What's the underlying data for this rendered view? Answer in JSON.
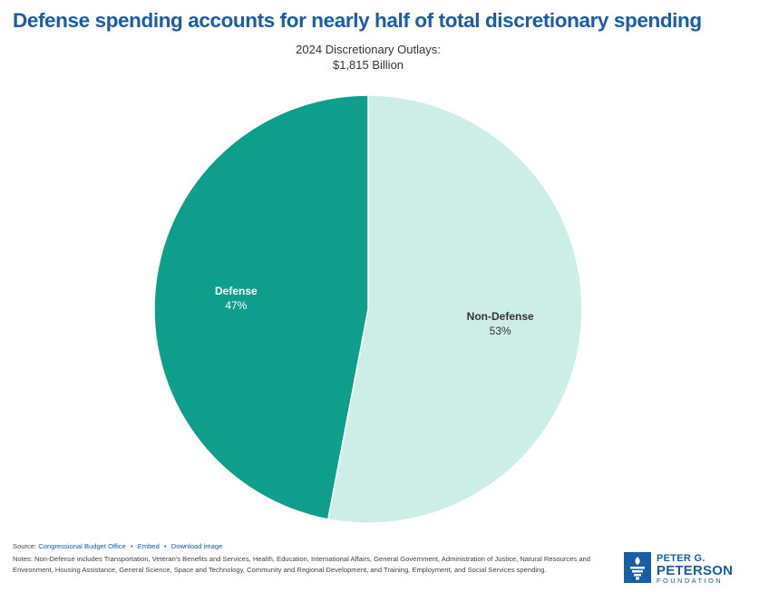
{
  "headline": "Defense spending accounts for nearly half of total discretionary spending",
  "chart_data": {
    "type": "pie",
    "title_lines": [
      "2024 Discretionary Outlays:",
      "$1,815 Billion"
    ],
    "start_angle_deg": 0,
    "direction": "clockwise",
    "slices": [
      {
        "label": "Non-Defense",
        "value": 53,
        "value_label": "53%",
        "color": "#cdeee6",
        "text_color": "#333333"
      },
      {
        "label": "Defense",
        "value": 47,
        "value_label": "47%",
        "color": "#0f9e8c",
        "text_color": "#ffffff"
      }
    ]
  },
  "footer": {
    "source_prefix": "Source:",
    "source_link": "Congressional Budget Office",
    "embed_link": "Embed",
    "download_link": "Download image",
    "separator": "•",
    "notes": "Notes: Non-Defense includes Transportation, Veteran's Benefits and Services, Health, Education, International Affairs, General Government, Administration of Justice, Natural Resources and Environment, Housing Assistance, General Science, Space and Technology, Community and Regional Development, and Training, Employment, and Social Services spending."
  },
  "logo": {
    "line1": "PETER G.",
    "line2": "PETERSON",
    "line3": "FOUNDATION"
  }
}
